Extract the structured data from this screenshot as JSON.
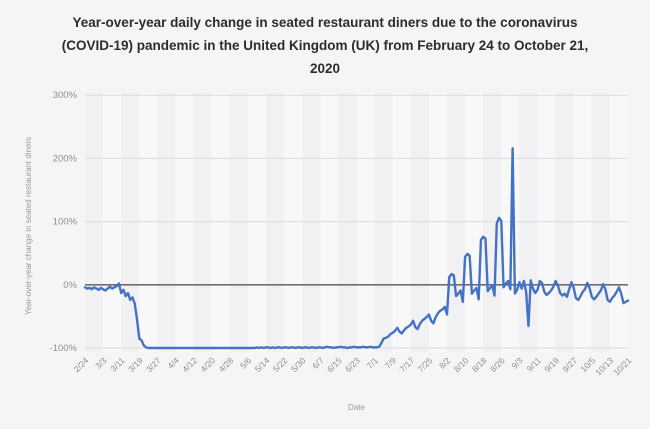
{
  "title": "Year-over-year daily change in seated restaurant diners due to the coronavirus (COVID-19) pandemic in the United Kingdom (UK) from February 24 to October 21, 2020",
  "chart_data": {
    "type": "line",
    "title": "Year-over-year daily change in seated restaurant diners due to the coronavirus (COVID-19) pandemic in the United Kingdom (UK) from February 24 to October 21, 2020",
    "xlabel": "Date",
    "ylabel": "Year-over-year change in seated restaurant diners",
    "ylim": [
      -100,
      300
    ],
    "grid": "horizontal",
    "legend_position": "none",
    "zero_line_color": "#6e6e6e",
    "gridline_color": "#dcdcdc",
    "y_ticks": [
      "300%",
      "200%",
      "100%",
      "0%",
      "-100%"
    ],
    "y_tick_values": [
      300,
      200,
      100,
      0,
      -100
    ],
    "x_tick_labels": [
      "2/24",
      "3/3",
      "3/11",
      "3/19",
      "3/27",
      "4/4",
      "4/12",
      "4/20",
      "4/28",
      "5/6",
      "5/14",
      "5/22",
      "5/30",
      "6/7",
      "6/15",
      "6/23",
      "7/1",
      "7/9",
      "7/17",
      "7/25",
      "8/2",
      "8/10",
      "8/18",
      "8/26",
      "9/3",
      "9/11",
      "9/19",
      "9/27",
      "10/5",
      "10/13",
      "10/21"
    ],
    "x_tick_every_days": 8,
    "x_start_date": "2/24/2020",
    "x_end_date": "10/21/2020",
    "frequency": "daily",
    "series": [
      {
        "name": "Year-over-year change in seated restaurant diners (%)",
        "color": "#4472c4",
        "values": [
          -4,
          -6,
          -5,
          -7,
          -4,
          -6,
          -8,
          -5,
          -7,
          -9,
          -6,
          -3,
          -6,
          -4,
          -2,
          2,
          -13,
          -8,
          -18,
          -13,
          -24,
          -20,
          -30,
          -55,
          -85,
          -88,
          -96,
          -99,
          -100,
          -100,
          -100,
          -100,
          -100,
          -100,
          -100,
          -100,
          -100,
          -100,
          -100,
          -100,
          -100,
          -100,
          -100,
          -100,
          -100,
          -100,
          -100,
          -100,
          -100,
          -100,
          -100,
          -100,
          -100,
          -100,
          -100,
          -100,
          -100,
          -100,
          -100,
          -100,
          -100,
          -100,
          -100,
          -100,
          -100,
          -100,
          -100,
          -100,
          -100,
          -100,
          -100,
          -100,
          -100,
          -100,
          -100,
          -100,
          -99,
          -100,
          -99,
          -100,
          -99,
          -99,
          -100,
          -99,
          -100,
          -99,
          -99,
          -100,
          -99,
          -99,
          -100,
          -99,
          -99,
          -100,
          -99,
          -99,
          -100,
          -99,
          -99,
          -100,
          -99,
          -99,
          -100,
          -99,
          -99,
          -100,
          -99,
          -98,
          -99,
          -99,
          -100,
          -99,
          -99,
          -98,
          -99,
          -99,
          -100,
          -99,
          -99,
          -98,
          -99,
          -99,
          -99,
          -98,
          -99,
          -99,
          -98,
          -99,
          -99,
          -99,
          -98,
          -92,
          -85,
          -84,
          -82,
          -78,
          -76,
          -73,
          -68,
          -74,
          -77,
          -72,
          -68,
          -66,
          -63,
          -57,
          -67,
          -70,
          -62,
          -57,
          -54,
          -51,
          -47,
          -57,
          -61,
          -51,
          -45,
          -41,
          -39,
          -35,
          -47,
          12,
          17,
          15,
          -18,
          -14,
          -9,
          -27,
          44,
          49,
          46,
          -14,
          -9,
          -5,
          -23,
          71,
          76,
          73,
          -10,
          -5,
          -1,
          -17,
          97,
          106,
          101,
          -4,
          2,
          6,
          -7,
          216,
          -14,
          -8,
          4,
          -6,
          6,
          -12,
          -65,
          7,
          -6,
          -13,
          -8,
          6,
          3,
          -11,
          -16,
          -13,
          -9,
          -3,
          6,
          -1,
          -13,
          -17,
          -14,
          -19,
          -7,
          4,
          -5,
          -21,
          -24,
          -18,
          -11,
          -7,
          3,
          -5,
          -19,
          -23,
          -19,
          -14,
          -9,
          1,
          -7,
          -24,
          -27,
          -21,
          -17,
          -11,
          -4,
          -14,
          -29,
          -27,
          -25
        ]
      }
    ]
  }
}
